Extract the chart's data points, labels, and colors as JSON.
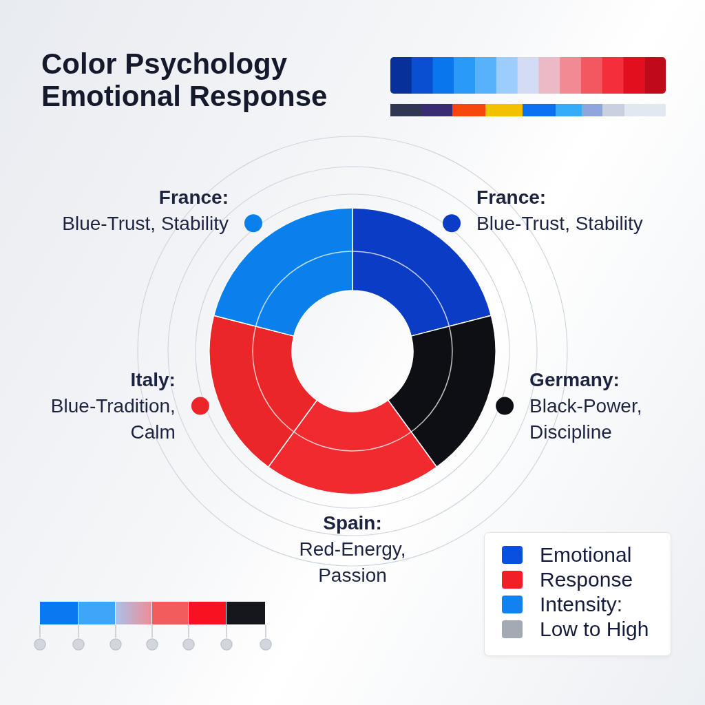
{
  "chart_data": {
    "type": "donut",
    "title": "Color Psychology Emotional Response",
    "categories": [
      "France:\nBlue-Trust, Stability",
      "Germany:\nBlack-Power,\nDiscipline",
      "Spain:\nRed-Energy,\nPassion",
      "Italy:\nBlue-Tradition,\nCalm",
      "France:\nBlue-Trust, Stability"
    ],
    "values": [
      21,
      19,
      20,
      19,
      21
    ],
    "colors": [
      "#0a3cc6",
      "#0e0f14",
      "#f02a2e",
      "#ea2629",
      "#0a80ec"
    ],
    "legend": "right",
    "annotations": [
      "Emotional Response Intensity: Low to High"
    ]
  }
}
